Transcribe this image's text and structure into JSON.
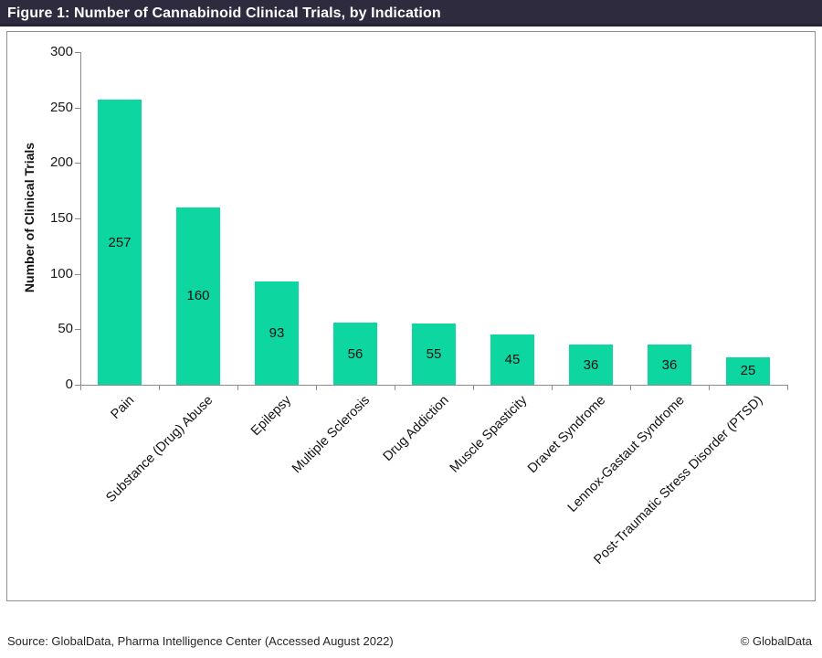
{
  "title_bar": {
    "text": "Figure 1: Number of Cannabinoid Clinical Trials, by Indication"
  },
  "chart_data": {
    "type": "bar",
    "title": "Figure 1: Number of Cannabinoid Clinical Trials, by Indication",
    "categories": [
      "Pain",
      "Substance (Drug) Abuse",
      "Epilepsy",
      "Multiple Sclerosis",
      "Drug Addiction",
      "Muscle Spasticity",
      "Dravet Syndrome",
      "Lennox-Gastaut Syndrome",
      "Post-Traumatic Stress Disorder (PTSD)"
    ],
    "values": [
      257,
      160,
      93,
      56,
      55,
      45,
      36,
      36,
      25
    ],
    "xlabel": "",
    "ylabel": "Number of Clinical Trials",
    "ylim": [
      0,
      300
    ],
    "yticks": [
      0,
      50,
      100,
      150,
      200,
      250,
      300
    ],
    "grid": false,
    "legend_position": "none",
    "data_label_position": "center",
    "bar_color": "#0dd6a1",
    "x_label_rotation_deg": 45
  },
  "footer": {
    "source": "Source: GlobalData, Pharma Intelligence Center (Accessed August 2022)",
    "copyright": "© GlobalData"
  }
}
